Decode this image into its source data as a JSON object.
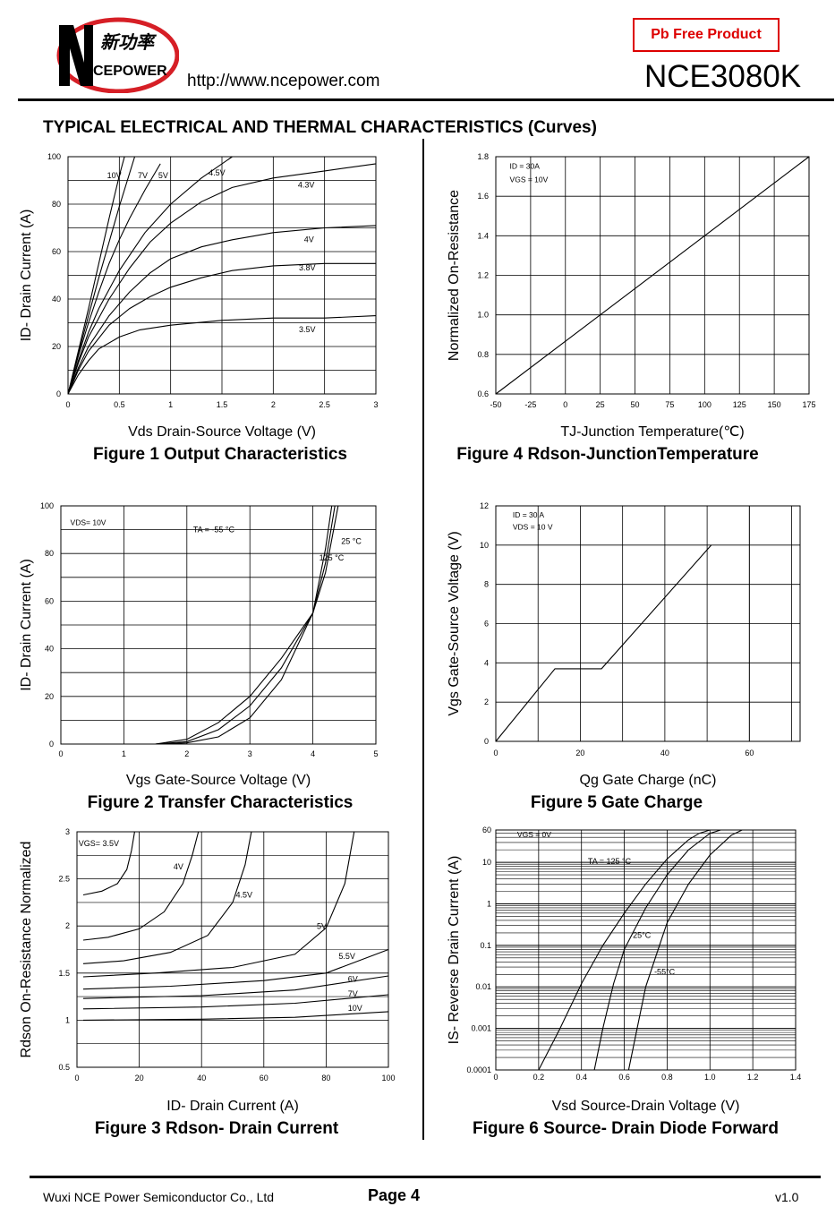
{
  "header": {
    "logo_cn": "新功率",
    "logo_en": "CEPOWER",
    "url": "http://www.ncepower.com",
    "badge": "Pb Free Product",
    "part_number": "NCE3080K"
  },
  "section_title": "TYPICAL ELECTRICAL AND THERMAL CHARACTERISTICS (Curves)",
  "footer": {
    "company": "Wuxi NCE Power Semiconductor Co., Ltd",
    "page": "Page 4",
    "version": "v1.0"
  },
  "chart_data": [
    {
      "id": "fig1",
      "type": "line",
      "title": "Figure 1 Output Characteristics",
      "xlabel": "Vds Drain-Source Voltage (V)",
      "ylabel": "ID- Drain Current (A)",
      "xlim": [
        0,
        3
      ],
      "ylim": [
        0,
        100
      ],
      "xticks": [
        "0",
        "0.5",
        "1",
        "1.5",
        "2",
        "2.5",
        "3"
      ],
      "yticks": [
        "0",
        "20",
        "40",
        "60",
        "80",
        "100"
      ],
      "series": [
        {
          "name": "10V",
          "x": [
            0,
            0.1,
            0.2,
            0.3,
            0.4,
            0.5,
            0.55
          ],
          "y": [
            0,
            18,
            36,
            55,
            74,
            92,
            100
          ]
        },
        {
          "name": "7V",
          "x": [
            0,
            0.1,
            0.2,
            0.3,
            0.4,
            0.5,
            0.65
          ],
          "y": [
            0,
            17,
            33,
            49,
            64,
            79,
            100
          ]
        },
        {
          "name": "5V",
          "x": [
            0,
            0.1,
            0.2,
            0.3,
            0.4,
            0.5,
            0.6,
            0.75,
            0.9
          ],
          "y": [
            0,
            16,
            30,
            43,
            55,
            65,
            74,
            86,
            97
          ]
        },
        {
          "name": "4.5V",
          "x": [
            0,
            0.1,
            0.2,
            0.3,
            0.5,
            0.75,
            1.0,
            1.3,
            1.6
          ],
          "y": [
            0,
            14,
            26,
            36,
            52,
            68,
            80,
            91,
            100
          ]
        },
        {
          "name": "4.3V",
          "x": [
            0,
            0.1,
            0.2,
            0.4,
            0.6,
            0.8,
            1.0,
            1.3,
            1.6,
            2.0,
            2.5,
            3.0
          ],
          "y": [
            0,
            13,
            24,
            40,
            53,
            64,
            72,
            81,
            87,
            91,
            94,
            97
          ]
        },
        {
          "name": "4V",
          "x": [
            0,
            0.1,
            0.2,
            0.4,
            0.6,
            0.8,
            1.0,
            1.3,
            1.6,
            2.0,
            2.5,
            3.0
          ],
          "y": [
            0,
            11,
            20,
            33,
            43,
            51,
            57,
            62,
            65,
            68,
            70,
            71
          ]
        },
        {
          "name": "3.8V",
          "x": [
            0,
            0.1,
            0.2,
            0.4,
            0.6,
            0.8,
            1.0,
            1.3,
            1.6,
            2.0,
            2.5,
            3.0
          ],
          "y": [
            0,
            10,
            18,
            29,
            36,
            41,
            45,
            49,
            52,
            54,
            55,
            55
          ]
        },
        {
          "name": "3.5V",
          "x": [
            0,
            0.1,
            0.2,
            0.3,
            0.5,
            0.7,
            1.0,
            1.5,
            2.0,
            2.5,
            3.0
          ],
          "y": [
            0,
            8,
            14,
            19,
            24,
            27,
            29,
            31,
            32,
            32,
            33
          ]
        }
      ]
    },
    {
      "id": "fig4",
      "type": "line",
      "title": "Figure 4 Rdson-JunctionTemperature",
      "xlabel": "TJ-Junction Temperature(℃)",
      "ylabel": "Normalized On-Resistance",
      "xlim": [
        -50,
        175
      ],
      "ylim": [
        0.6,
        1.8
      ],
      "xticks": [
        "-50",
        "-25",
        "0",
        "25",
        "50",
        "75",
        "100",
        "125",
        "150",
        "175"
      ],
      "yticks": [
        "0.6",
        "0.8",
        "1.0",
        "1.2",
        "1.4",
        "1.6",
        "1.8"
      ],
      "annotations": [
        "ID = 30A",
        "VGS = 10V"
      ],
      "series": [
        {
          "name": "",
          "x": [
            -50,
            175
          ],
          "y": [
            0.6,
            1.8
          ]
        }
      ]
    },
    {
      "id": "fig2",
      "type": "line",
      "title": "Figure 2 Transfer Characteristics",
      "xlabel": "Vgs Gate-Source Voltage (V)",
      "ylabel": "ID- Drain Current (A)",
      "xlim": [
        0,
        5
      ],
      "ylim": [
        0,
        100
      ],
      "xticks": [
        "0",
        "1",
        "2",
        "3",
        "4",
        "5"
      ],
      "yticks": [
        "0",
        "20",
        "40",
        "60",
        "80",
        "100"
      ],
      "annotations": [
        "VDS= 10V"
      ],
      "series": [
        {
          "name": "TA = -55 °C",
          "x": [
            1.0,
            1.5,
            2.0,
            2.5,
            3.0,
            3.5,
            4.0,
            4.2,
            4.3
          ],
          "y": [
            0,
            0,
            0.5,
            3,
            11,
            27,
            55,
            82,
            100
          ]
        },
        {
          "name": "25 °C",
          "x": [
            1.0,
            1.5,
            2.0,
            2.5,
            3.0,
            3.5,
            4.0,
            4.2,
            4.35
          ],
          "y": [
            0,
            0,
            1,
            6,
            16,
            32,
            55,
            76,
            100
          ]
        },
        {
          "name": "125 °C",
          "x": [
            1.0,
            1.5,
            2.0,
            2.5,
            3.0,
            3.5,
            4.0,
            4.2,
            4.4
          ],
          "y": [
            0,
            0,
            2,
            9,
            20,
            36,
            55,
            72,
            100
          ]
        }
      ]
    },
    {
      "id": "fig5",
      "type": "line",
      "title": "Figure 5 Gate Charge",
      "xlabel": "Qg Gate Charge (nC)",
      "ylabel": "Vgs Gate-Source Voltage (V)",
      "xlim": [
        0,
        72
      ],
      "ylim": [
        0,
        12
      ],
      "xticks": [
        "0",
        "20",
        "40",
        "60"
      ],
      "yticks": [
        "0",
        "2",
        "4",
        "6",
        "8",
        "10",
        "12"
      ],
      "annotations": [
        "ID = 30 A",
        "VDS = 10 V"
      ],
      "series": [
        {
          "name": "",
          "x": [
            0,
            14,
            25,
            51
          ],
          "y": [
            0,
            3.7,
            3.7,
            10
          ]
        }
      ]
    },
    {
      "id": "fig3",
      "type": "line",
      "title": "Figure 3 Rdson- Drain Current",
      "xlabel": "ID- Drain Current (A)",
      "ylabel": "Rdson On-Resistance Normalized",
      "xlim": [
        0,
        100
      ],
      "ylim": [
        0.5,
        3
      ],
      "xticks": [
        "0",
        "20",
        "40",
        "60",
        "80",
        "100"
      ],
      "yticks": [
        "0.5",
        "1",
        "1.5",
        "2",
        "2.5",
        "3"
      ],
      "series": [
        {
          "name": "VGS= 3.5V",
          "x": [
            2,
            8,
            13,
            16,
            17.5,
            18.5
          ],
          "y": [
            2.33,
            2.37,
            2.45,
            2.6,
            2.8,
            3.0
          ]
        },
        {
          "name": "4V",
          "x": [
            2,
            10,
            20,
            28,
            34,
            37,
            39
          ],
          "y": [
            1.85,
            1.88,
            1.97,
            2.15,
            2.45,
            2.75,
            3.0
          ]
        },
        {
          "name": "4.5V",
          "x": [
            2,
            15,
            30,
            42,
            50,
            54,
            56
          ],
          "y": [
            1.6,
            1.63,
            1.72,
            1.9,
            2.25,
            2.65,
            3.0
          ]
        },
        {
          "name": "5V",
          "x": [
            2,
            25,
            50,
            70,
            80,
            86,
            89
          ],
          "y": [
            1.46,
            1.5,
            1.56,
            1.7,
            1.98,
            2.45,
            3.0
          ]
        },
        {
          "name": "5.5V",
          "x": [
            2,
            30,
            60,
            80,
            100
          ],
          "y": [
            1.33,
            1.36,
            1.42,
            1.5,
            1.75
          ]
        },
        {
          "name": "6V",
          "x": [
            2,
            40,
            70,
            100
          ],
          "y": [
            1.23,
            1.26,
            1.32,
            1.47
          ]
        },
        {
          "name": "7V",
          "x": [
            2,
            40,
            70,
            100
          ],
          "y": [
            1.12,
            1.14,
            1.18,
            1.27
          ]
        },
        {
          "name": "10V",
          "x": [
            2,
            40,
            70,
            100
          ],
          "y": [
            1.0,
            1.01,
            1.03,
            1.09
          ]
        }
      ]
    },
    {
      "id": "fig6",
      "type": "line",
      "title": "Figure 6 Source- Drain Diode Forward",
      "xlabel": "Vsd Source-Drain Voltage (V)",
      "ylabel": "IS- Reverse Drain Current (A)",
      "xscale": "log-y",
      "xlim": [
        0,
        1.4
      ],
      "ylim": [
        0.0001,
        60
      ],
      "xticks": [
        "0",
        "0.2",
        "0.4",
        "0.6",
        "0.8",
        "1.0",
        "1.2",
        "1.4"
      ],
      "yticks": [
        "0.0001",
        "0.001",
        "0.01",
        "0.1",
        "1",
        "10",
        "60"
      ],
      "annotations": [
        "VGS = 0V"
      ],
      "series": [
        {
          "name": "TA = 125 °C",
          "x": [
            0.2,
            0.3,
            0.4,
            0.5,
            0.6,
            0.7,
            0.8,
            0.9,
            0.95,
            1.0
          ],
          "y": [
            0.0001,
            0.001,
            0.012,
            0.1,
            0.6,
            3,
            12,
            35,
            50,
            60
          ]
        },
        {
          "name": "25°C",
          "x": [
            0.46,
            0.5,
            0.55,
            0.6,
            0.7,
            0.8,
            0.9,
            1.0,
            1.05
          ],
          "y": [
            0.0001,
            0.001,
            0.012,
            0.08,
            0.8,
            5,
            20,
            50,
            60
          ]
        },
        {
          "name": "-55°C",
          "x": [
            0.62,
            0.66,
            0.7,
            0.75,
            0.8,
            0.9,
            1.0,
            1.1,
            1.15
          ],
          "y": [
            0.0001,
            0.001,
            0.01,
            0.06,
            0.35,
            3,
            15,
            45,
            60
          ]
        }
      ]
    }
  ]
}
